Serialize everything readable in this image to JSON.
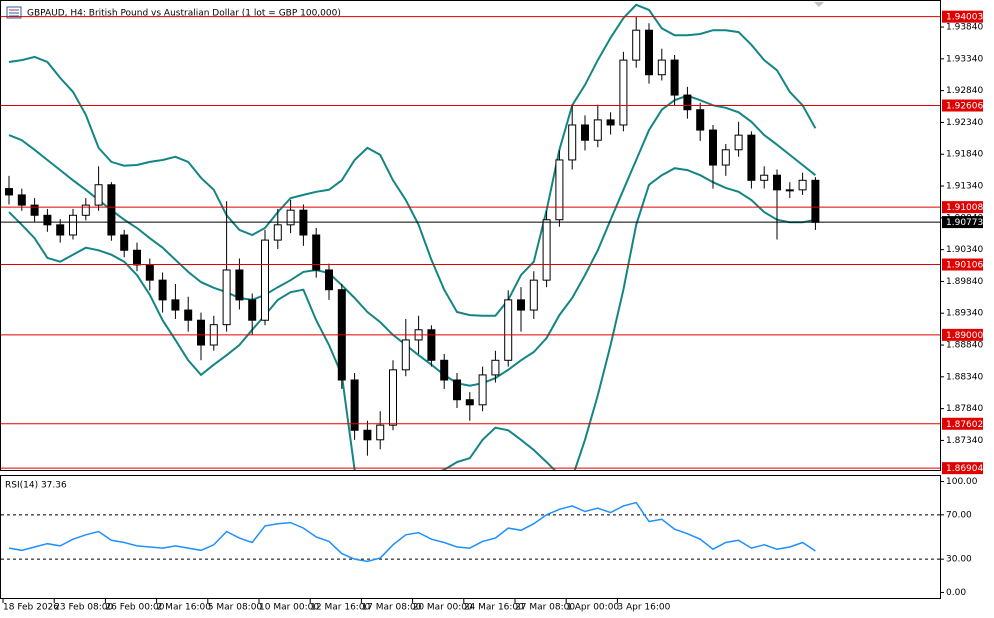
{
  "chart_data": [
    {
      "type": "candlestick",
      "title": "GBPAUD, H4:  British Pound vs Australian Dollar (1 lot = GBP 100,000)",
      "categories": [
        "18 Feb 2026",
        null,
        null,
        null,
        "23 Feb 08:00",
        null,
        null,
        null,
        "26 Feb 00:00",
        null,
        null,
        null,
        "2 Mar 16:00",
        null,
        null,
        null,
        "5 Mar 08:00",
        null,
        null,
        null,
        "10 Mar 00:00",
        null,
        null,
        null,
        "12 Mar 16:00",
        null,
        null,
        null,
        "17 Mar 08:00",
        null,
        null,
        null,
        "20 Mar 00:00",
        null,
        null,
        null,
        "24 Mar 16:00",
        null,
        null,
        null,
        "27 Mar 08:00",
        null,
        null,
        null,
        "1 Apr 00:00",
        null,
        null,
        null,
        "3 Apr 16:00",
        null,
        null,
        null,
        null,
        null,
        null,
        null,
        null,
        null,
        null,
        null,
        null,
        null,
        null,
        null
      ],
      "open": [
        1.913,
        1.912,
        1.9104,
        1.9088,
        1.9073,
        1.9057,
        1.9088,
        1.9104,
        1.9136,
        1.9057,
        1.9033,
        1.901,
        1.8986,
        1.8955,
        1.8939,
        1.8923,
        1.8884,
        1.8916,
        1.9002,
        1.8955,
        1.8923,
        1.9049,
        1.9073,
        1.9096,
        1.9057,
        1.9002,
        1.8971,
        1.8829,
        1.875,
        1.8735,
        1.8758,
        1.8845,
        1.8892,
        1.8908,
        1.886,
        1.8829,
        1.8798,
        1.879,
        1.8837,
        1.886,
        1.8955,
        1.8939,
        1.8986,
        1.9081,
        1.9175,
        1.923,
        1.9206,
        1.9238,
        1.923,
        1.9332,
        1.9379,
        1.9309,
        1.9332,
        1.9277,
        1.9254,
        1.9222,
        1.9167,
        1.9191,
        1.9214,
        1.9143,
        1.9151,
        1.9128,
        1.9128,
        1.9143
      ],
      "high": [
        1.915,
        1.913,
        1.9115,
        1.9098,
        1.9082,
        1.9098,
        1.9115,
        1.9165,
        1.914,
        1.9065,
        1.9045,
        1.902,
        1.8998,
        1.898,
        1.896,
        1.8935,
        1.893,
        1.911,
        1.902,
        1.8965,
        1.9065,
        1.9098,
        1.9112,
        1.9105,
        1.9068,
        1.9012,
        1.898,
        1.884,
        1.8765,
        1.878,
        1.886,
        1.8925,
        1.893,
        1.8915,
        1.887,
        1.884,
        1.881,
        1.885,
        1.8875,
        1.897,
        1.8975,
        1.9,
        1.9095,
        1.919,
        1.9262,
        1.9245,
        1.9262,
        1.925,
        1.9345,
        1.94,
        1.939,
        1.935,
        1.934,
        1.929,
        1.9265,
        1.923,
        1.92,
        1.9235,
        1.922,
        1.9165,
        1.916,
        1.914,
        1.9155,
        1.9148
      ],
      "low": [
        1.9105,
        1.9095,
        1.9078,
        1.9062,
        1.9045,
        1.905,
        1.908,
        1.9095,
        1.9048,
        1.9022,
        1.9,
        1.897,
        1.8935,
        1.8925,
        1.8905,
        1.886,
        1.8875,
        1.8905,
        1.894,
        1.89,
        1.8915,
        1.9035,
        1.906,
        1.904,
        1.899,
        1.8955,
        1.8815,
        1.8735,
        1.871,
        1.872,
        1.875,
        1.8835,
        1.887,
        1.885,
        1.8815,
        1.8785,
        1.8765,
        1.878,
        1.8825,
        1.885,
        1.8905,
        1.8925,
        1.8975,
        1.907,
        1.916,
        1.919,
        1.9195,
        1.9215,
        1.922,
        1.932,
        1.9295,
        1.93,
        1.926,
        1.924,
        1.9205,
        1.913,
        1.915,
        1.918,
        1.913,
        1.913,
        1.905,
        1.9115,
        1.912,
        1.9065
      ],
      "close": [
        1.912,
        1.9104,
        1.9088,
        1.9073,
        1.9057,
        1.9088,
        1.9104,
        1.9136,
        1.9057,
        1.9033,
        1.901,
        1.8986,
        1.8955,
        1.8939,
        1.8923,
        1.8884,
        1.8916,
        1.9002,
        1.8955,
        1.8923,
        1.9049,
        1.9073,
        1.9096,
        1.9057,
        1.9002,
        1.8971,
        1.8829,
        1.875,
        1.8735,
        1.8758,
        1.8845,
        1.8892,
        1.8908,
        1.886,
        1.8829,
        1.8798,
        1.879,
        1.8837,
        1.886,
        1.8955,
        1.8939,
        1.8986,
        1.9081,
        1.9175,
        1.923,
        1.9206,
        1.9238,
        1.923,
        1.9332,
        1.9379,
        1.9309,
        1.9332,
        1.9277,
        1.9254,
        1.9222,
        1.9167,
        1.9191,
        1.9214,
        1.9143,
        1.9151,
        1.9128,
        1.9128,
        1.9143,
        1.9077
      ],
      "overlays": [
        {
          "color": "#138585",
          "values": [
            1.9329,
            1.9332,
            1.9337,
            1.9329,
            1.9304,
            1.9282,
            1.9246,
            1.9194,
            1.9172,
            1.9166,
            1.9167,
            1.9172,
            1.9175,
            1.918,
            1.9172,
            1.9147,
            1.9128,
            1.9088,
            1.9065,
            1.9057,
            1.9068,
            1.9093,
            1.9115,
            1.912,
            1.9125,
            1.9128,
            1.9143,
            1.9175,
            1.9194,
            1.9183,
            1.9143,
            1.9112,
            1.9073,
            1.9018,
            1.8971,
            1.8936,
            1.8931,
            1.893,
            1.893,
            1.8955,
            1.8994,
            1.9015,
            1.9096,
            1.9191,
            1.9261,
            1.9293,
            1.9332,
            1.9367,
            1.9398,
            1.9419,
            1.9411,
            1.9382,
            1.9371,
            1.9371,
            1.9373,
            1.9379,
            1.9379,
            1.9376,
            1.9356,
            1.9332,
            1.9316,
            1.9282,
            1.9261,
            1.9225
          ]
        },
        {
          "color": "#138585",
          "values": [
            1.9214,
            1.9206,
            1.9191,
            1.9175,
            1.9159,
            1.9143,
            1.9128,
            1.9112,
            1.9096,
            1.9081,
            1.9068,
            1.9052,
            1.9037,
            1.9018,
            1.8999,
            1.8983,
            1.8974,
            1.8967,
            1.8958,
            1.8955,
            1.8963,
            1.8975,
            1.8986,
            1.8999,
            1.9002,
            1.8997,
            1.8978,
            1.8958,
            1.8936,
            1.892,
            1.89,
            1.8884,
            1.8868,
            1.8853,
            1.8837,
            1.8824,
            1.882,
            1.8824,
            1.8832,
            1.8845,
            1.886,
            1.8873,
            1.8895,
            1.8931,
            1.8958,
            1.8994,
            1.9033,
            1.9081,
            1.9128,
            1.9175,
            1.9222,
            1.9254,
            1.9269,
            1.9276,
            1.9269,
            1.9261,
            1.9257,
            1.925,
            1.9235,
            1.9214,
            1.9199,
            1.9183,
            1.9167,
            1.9151
          ]
        },
        {
          "color": "#138585",
          "values": [
            1.9093,
            1.9073,
            1.9052,
            1.9021,
            1.9015,
            1.9026,
            1.9037,
            1.9033,
            1.9026,
            1.9015,
            1.8994,
            1.8963,
            1.8923,
            1.8892,
            1.886,
            1.8837,
            1.8853,
            1.8868,
            1.8884,
            1.8908,
            1.8931,
            1.8955,
            1.8967,
            1.8971,
            1.8923,
            1.8884,
            1.8837,
            1.8688,
            1.8664,
            1.8656,
            1.8656,
            1.8659,
            1.8672,
            1.868,
            1.8688,
            1.87,
            1.8706,
            1.8735,
            1.8754,
            1.875,
            1.8735,
            1.8719,
            1.87,
            1.868,
            1.8675,
            1.8735,
            1.8805,
            1.8884,
            1.8971,
            1.9073,
            1.9136,
            1.9151,
            1.9162,
            1.9159,
            1.9151,
            1.914,
            1.9131,
            1.9125,
            1.9112,
            1.9093,
            1.9081,
            1.9077,
            1.9077,
            1.9081
          ]
        }
      ],
      "hline_color": "#e00000",
      "hlines": [
        {
          "value": 1.94003,
          "label": "1.94003"
        },
        {
          "value": 1.92606,
          "label": "1.92606"
        },
        {
          "value": 1.91008,
          "label": "1.91008"
        },
        {
          "value": 1.90106,
          "label": "1.90106"
        },
        {
          "value": 1.89,
          "label": "1.89000"
        },
        {
          "value": 1.87602,
          "label": "1.87602"
        },
        {
          "value": 1.86904,
          "label": "1.86904"
        }
      ],
      "current_price": {
        "value": 1.90773,
        "label": "1.90773"
      },
      "ylim": [
        1.86875,
        1.94265
      ],
      "yticks": [
        {
          "value": 1.9384,
          "label": "1.93840"
        },
        {
          "value": 1.9334,
          "label": "1.93340"
        },
        {
          "value": 1.9284,
          "label": "1.92840"
        },
        {
          "value": 1.9234,
          "label": "1.92340"
        },
        {
          "value": 1.9184,
          "label": "1.91840"
        },
        {
          "value": 1.9134,
          "label": "1.91340"
        },
        {
          "value": 1.9084,
          "label": "1.90840"
        },
        {
          "value": 1.9034,
          "label": "1.90340"
        },
        {
          "value": 1.8984,
          "label": "1.89840"
        },
        {
          "value": 1.8934,
          "label": "1.89340"
        },
        {
          "value": 1.8884,
          "label": "1.88840"
        },
        {
          "value": 1.8834,
          "label": "1.88340"
        },
        {
          "value": 1.8784,
          "label": "1.87840"
        },
        {
          "value": 1.8734,
          "label": "1.87340"
        }
      ],
      "grid": false
    },
    {
      "type": "line",
      "title": "RSI(14) 37.36",
      "series": [
        {
          "color": "#1e90ff",
          "values": [
            40,
            38,
            41,
            44,
            42,
            48,
            52,
            55,
            47,
            45,
            42,
            41,
            40,
            42,
            40,
            38,
            43,
            55,
            49,
            45,
            60,
            62,
            63,
            58,
            50,
            46,
            35,
            30,
            28,
            31,
            43,
            52,
            54,
            48,
            45,
            41,
            40,
            46,
            49,
            58,
            56,
            62,
            70,
            75,
            78,
            73,
            76,
            72,
            78,
            81,
            64,
            66,
            57,
            53,
            48,
            39,
            45,
            47,
            40,
            43,
            39,
            41,
            45,
            37.36
          ]
        }
      ],
      "levels": [
        30,
        70
      ],
      "ylim": [
        -5,
        105
      ],
      "yticks": [
        {
          "value": 100,
          "label": "100.00"
        },
        {
          "value": 70,
          "label": "70.00"
        },
        {
          "value": 30,
          "label": "30.00"
        },
        {
          "value": 0,
          "label": "0.00"
        }
      ]
    }
  ]
}
